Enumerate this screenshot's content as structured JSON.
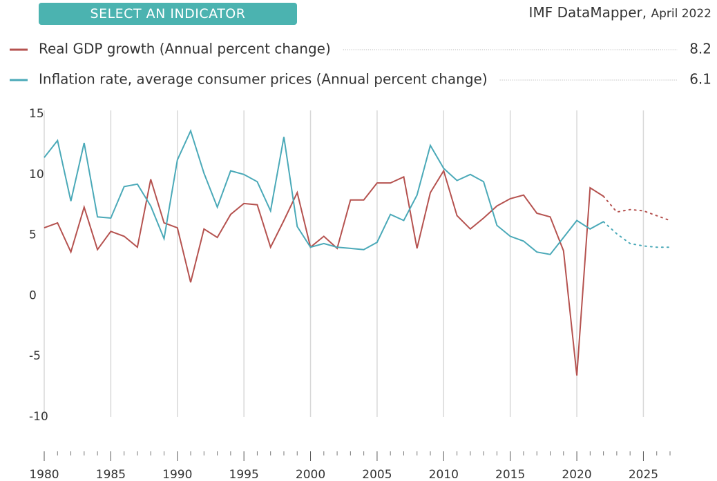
{
  "header": {
    "button": "SELECT AN INDICATOR",
    "source": "IMF DataMapper,",
    "date": "April 2022"
  },
  "chart_data": {
    "type": "line",
    "x": [
      1980,
      1981,
      1982,
      1983,
      1984,
      1985,
      1986,
      1987,
      1988,
      1989,
      1990,
      1991,
      1992,
      1993,
      1994,
      1995,
      1996,
      1997,
      1998,
      1999,
      2000,
      2001,
      2002,
      2003,
      2004,
      2005,
      2006,
      2007,
      2008,
      2009,
      2010,
      2011,
      2012,
      2013,
      2014,
      2015,
      2016,
      2017,
      2018,
      2019,
      2020,
      2021,
      2022,
      2023,
      2024,
      2025,
      2026,
      2027
    ],
    "series": [
      {
        "name": "Real GDP growth (Annual percent change)",
        "color": "#b5524f",
        "legend_value": 8.2,
        "values": [
          5.6,
          6.0,
          3.6,
          7.3,
          3.8,
          5.3,
          4.9,
          4.0,
          9.6,
          6.0,
          5.6,
          1.1,
          5.5,
          4.8,
          6.7,
          7.6,
          7.5,
          4.0,
          6.2,
          8.5,
          4.0,
          4.9,
          3.9,
          7.9,
          7.9,
          9.3,
          9.3,
          9.8,
          3.9,
          8.5,
          10.3,
          6.6,
          5.5,
          6.4,
          7.4,
          8.0,
          8.3,
          6.8,
          6.5,
          3.7,
          -6.6,
          8.9,
          8.2,
          6.9,
          7.1,
          7.0,
          6.6,
          6.2
        ]
      },
      {
        "name": "Inflation rate, average consumer prices (Annual percent change)",
        "color": "#4aa9b8",
        "legend_value": 6.1,
        "values": [
          11.4,
          12.8,
          7.8,
          12.6,
          6.5,
          6.4,
          9.0,
          9.2,
          7.4,
          4.7,
          11.2,
          13.6,
          10.1,
          7.3,
          10.3,
          10.0,
          9.4,
          7.0,
          13.1,
          5.7,
          4.0,
          4.3,
          4.0,
          3.9,
          3.8,
          4.4,
          6.7,
          6.2,
          8.3,
          12.4,
          10.5,
          9.5,
          10.0,
          9.4,
          5.8,
          4.9,
          4.5,
          3.6,
          3.4,
          4.8,
          6.2,
          5.5,
          6.1,
          5.1,
          4.3,
          4.1,
          4.0,
          4.0
        ]
      }
    ],
    "projection_from": 2022,
    "xlim": [
      1980,
      2027
    ],
    "xticks": [
      1980,
      1985,
      1990,
      1995,
      2000,
      2005,
      2010,
      2015,
      2020,
      2025
    ],
    "xminor_ticks": [
      1981,
      1982,
      1983,
      1984,
      1986,
      1987,
      1988,
      1989,
      1991,
      1992,
      1993,
      1994,
      1996,
      1997,
      1998,
      1999,
      2001,
      2002,
      2003,
      2004,
      2006,
      2007,
      2008,
      2009,
      2011,
      2012,
      2013,
      2014,
      2016,
      2017,
      2018,
      2019,
      2021,
      2022,
      2023,
      2024,
      2026,
      2027
    ],
    "ylim": [
      -10,
      15
    ],
    "yticks": [
      -10,
      -5,
      0,
      5,
      10,
      15
    ],
    "grid": true
  }
}
